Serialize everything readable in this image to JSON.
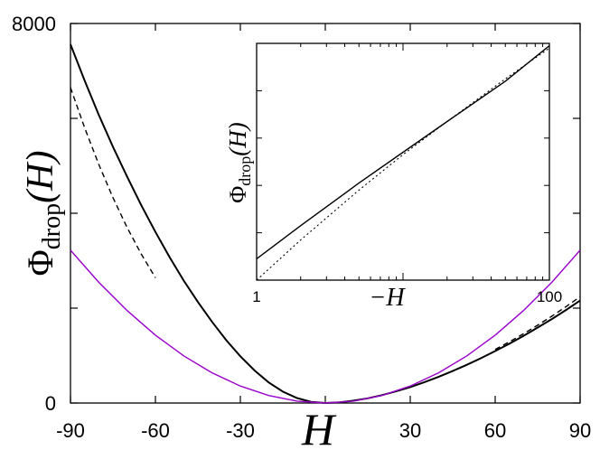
{
  "chart_data": [
    {
      "type": "line",
      "xlabel": "H",
      "ylabel_symbol": "Φ",
      "ylabel_subscript": "drop",
      "ylabel_arg": "(H)",
      "xlim": [
        -90,
        90
      ],
      "ylim": [
        0,
        8000
      ],
      "xticks": [
        -90,
        -60,
        -30,
        0,
        30,
        60,
        90
      ],
      "xtick_labels": [
        "-90",
        "-60",
        "-30",
        "",
        "30",
        "60",
        "90"
      ],
      "yticks": [
        0,
        2000,
        4000,
        6000,
        8000
      ],
      "ytick_labels": [
        "0",
        "",
        "",
        "",
        "8000"
      ],
      "series": [
        {
          "color": "#000000",
          "style": "solid",
          "x": [
            -90,
            -85,
            -80,
            -75,
            -70,
            -65,
            -60,
            -55,
            -50,
            -45,
            -40,
            -35,
            -30,
            -25,
            -20,
            -15,
            -10,
            -5,
            0,
            5,
            10,
            15,
            20,
            25,
            30,
            35,
            40,
            45,
            50,
            55,
            60,
            65,
            70,
            75,
            80,
            85,
            90
          ],
          "y": [
            7560,
            6795,
            6075,
            5400,
            4770,
            4170,
            3605,
            3075,
            2580,
            2130,
            1710,
            1325,
            985,
            685,
            435,
            240,
            105,
            25,
            0,
            15,
            50,
            100,
            165,
            245,
            335,
            440,
            550,
            675,
            805,
            945,
            1095,
            1250,
            1415,
            1590,
            1770,
            1960,
            2160
          ]
        },
        {
          "color": "#000000",
          "style": "dashed",
          "x": [
            -90,
            -85,
            -80,
            -75,
            -70,
            -65,
            -60
          ],
          "y": [
            6650,
            5800,
            5030,
            4330,
            3700,
            3140,
            2640
          ]
        },
        {
          "color": "#000000",
          "style": "dashed",
          "x": [
            60,
            65,
            70,
            75,
            80,
            85,
            90
          ],
          "y": [
            1130,
            1290,
            1460,
            1640,
            1830,
            2030,
            2240
          ]
        },
        {
          "color": "#9900cc",
          "style": "solid",
          "x": [
            -90,
            -80,
            -70,
            -60,
            -50,
            -40,
            -30,
            -20,
            -10,
            0,
            10,
            20,
            30,
            40,
            50,
            60,
            70,
            80,
            90
          ],
          "y": [
            3220,
            2545,
            1948,
            1431,
            994,
            636,
            358,
            159,
            40,
            0,
            40,
            159,
            358,
            636,
            994,
            1431,
            1948,
            2545,
            3220
          ]
        }
      ]
    },
    {
      "type": "line",
      "inset": true,
      "xlabel": "−H",
      "ylabel_symbol": "Φ",
      "ylabel_subscript": "drop",
      "ylabel_arg": "(H)",
      "xscale": "log",
      "xlim": [
        1,
        100
      ],
      "xtick_labels": [
        "1",
        "100"
      ],
      "series": [
        {
          "color": "#000000",
          "style": "solid",
          "x": [
            1,
            2,
            5,
            10,
            20,
            50,
            100
          ],
          "y": [
            0.09,
            0.23,
            0.41,
            0.54,
            0.67,
            0.84,
            0.99
          ]
        },
        {
          "color": "#000000",
          "style": "dotted",
          "x": [
            1,
            2,
            5,
            10,
            20,
            50,
            100
          ],
          "y": [
            0.0,
            0.17,
            0.38,
            0.53,
            0.67,
            0.85,
            0.98
          ]
        }
      ]
    }
  ]
}
